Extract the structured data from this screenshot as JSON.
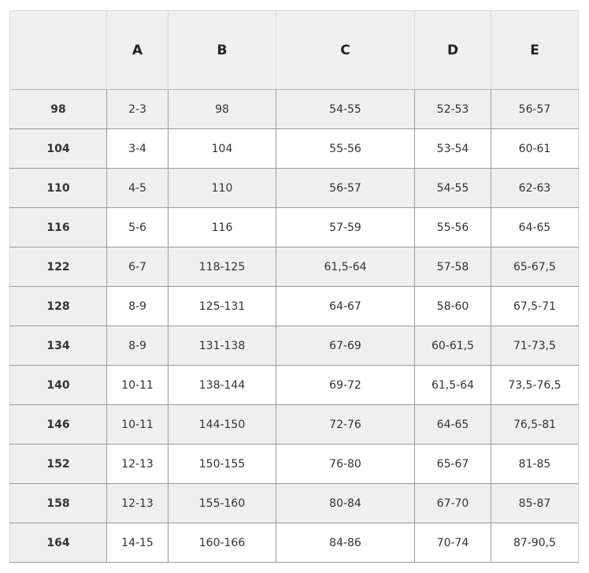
{
  "table": {
    "headers": [
      "",
      "A",
      "B",
      "C",
      "D",
      "E"
    ],
    "rows": [
      [
        "98",
        "2-3",
        "98",
        "54-55",
        "52-53",
        "56-57"
      ],
      [
        "104",
        "3-4",
        "104",
        "55-56",
        "53-54",
        "60-61"
      ],
      [
        "110",
        "4-5",
        "110",
        "56-57",
        "54-55",
        "62-63"
      ],
      [
        "116",
        "5-6",
        "116",
        "57-59",
        "55-56",
        "64-65"
      ],
      [
        "122",
        "6-7",
        "118-125",
        "61,5-64",
        "57-58",
        "65-67,5"
      ],
      [
        "128",
        "8-9",
        "125-131",
        "64-67",
        "58-60",
        "67,5-71"
      ],
      [
        "134",
        "8-9",
        "131-138",
        "67-69",
        "60-61,5",
        "71-73,5"
      ],
      [
        "140",
        "10-11",
        "138-144",
        "69-72",
        "61,5-64",
        "73,5-76,5"
      ],
      [
        "146",
        "10-11",
        "144-150",
        "72-76",
        "64-65",
        "76,5-81"
      ],
      [
        "152",
        "12-13",
        "150-155",
        "76-80",
        "65-67",
        "81-85"
      ],
      [
        "158",
        "12-13",
        "155-160",
        "80-84",
        "67-70",
        "85-87"
      ],
      [
        "164",
        "14-15",
        "160-166",
        "84-86",
        "70-74",
        "87-90,5"
      ]
    ]
  },
  "colors": {
    "stripe": "#efefef",
    "border": "#9a9a9a",
    "text": "#333333"
  }
}
